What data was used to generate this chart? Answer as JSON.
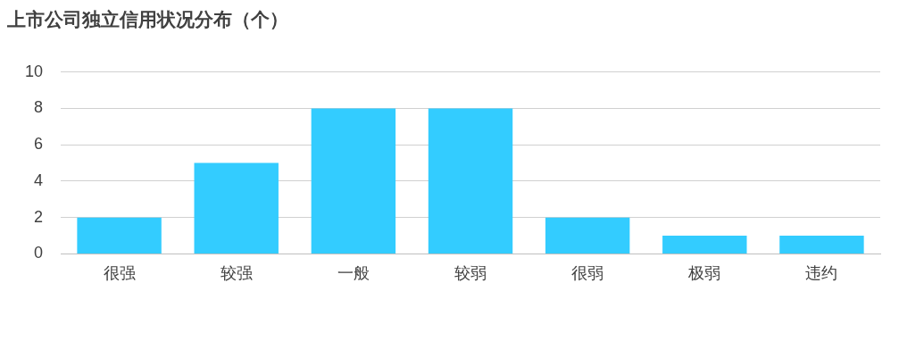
{
  "chart_data": {
    "type": "bar",
    "title": "上市公司独立信用状况分布（个）",
    "categories": [
      "很强",
      "较强",
      "一般",
      "较弱",
      "很弱",
      "极弱",
      "违约"
    ],
    "values": [
      2,
      5,
      8,
      8,
      2,
      1,
      1
    ],
    "color": "#33ccff",
    "ylim": [
      0,
      10
    ],
    "yticks": [
      0,
      2,
      4,
      6,
      8,
      10
    ],
    "grid": "y"
  }
}
